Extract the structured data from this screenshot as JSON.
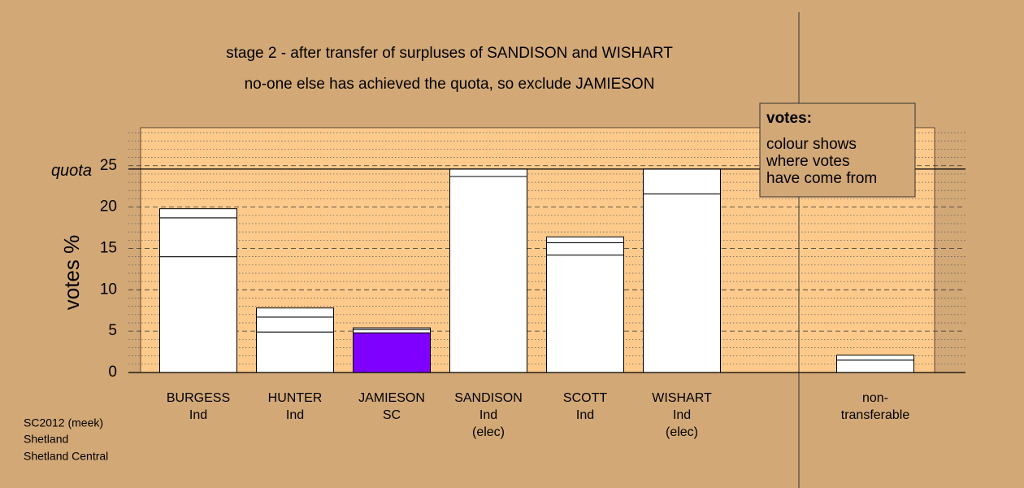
{
  "chart_data": {
    "type": "stacked_bar",
    "title": "stage 2 - after transfer of surpluses of SANDISON and WISHART",
    "subtitle": "no-one else has achieved the quota, so exclude JAMIESON",
    "y_label": "votes %",
    "categories": [
      [
        "BURGESS",
        "Ind"
      ],
      [
        "HUNTER",
        "Ind"
      ],
      [
        "JAMIESON",
        "SC"
      ],
      [
        "SANDISON",
        "Ind",
        "(elec)"
      ],
      [
        "SCOTT",
        "Ind"
      ],
      [
        "WISHART",
        "Ind",
        "(elec)"
      ],
      null,
      [
        "non-",
        "transferable"
      ]
    ],
    "series": [
      {
        "color": "#ffffff",
        "colors": [
          "#ffffff",
          "#ffffff",
          "#8000ff",
          "#ffffff",
          "#ffffff",
          "#ffffff",
          null,
          "#ffffff"
        ],
        "values": [
          14.0,
          4.9,
          4.8,
          23.7,
          14.2,
          21.6,
          null,
          1.5
        ]
      },
      {
        "color": "#ffffff",
        "values": [
          4.7,
          1.8,
          0.4,
          0.9,
          1.5,
          3.0,
          null,
          0.6
        ]
      },
      {
        "color": "#ffffff",
        "values": [
          1.1,
          1.1,
          0.2,
          0,
          0.7,
          0,
          null,
          0
        ]
      }
    ],
    "quota": 24.6,
    "quota_label": "quota",
    "ylim": [
      0,
      29.6
    ],
    "yticks": [
      0,
      5,
      10,
      15,
      20,
      25
    ],
    "minor_yticks": [
      1,
      2,
      3,
      4,
      6,
      7,
      8,
      9,
      11,
      12,
      13,
      14,
      16,
      17,
      18,
      19,
      21,
      22,
      23,
      24,
      26,
      27,
      28,
      29
    ],
    "grid": true,
    "legend_title": "votes:",
    "legend_text": [
      "colour shows",
      "where votes",
      "have come from"
    ],
    "footer": [
      "SC2012 (meek)",
      "Shetland",
      "Shetland Central"
    ]
  }
}
